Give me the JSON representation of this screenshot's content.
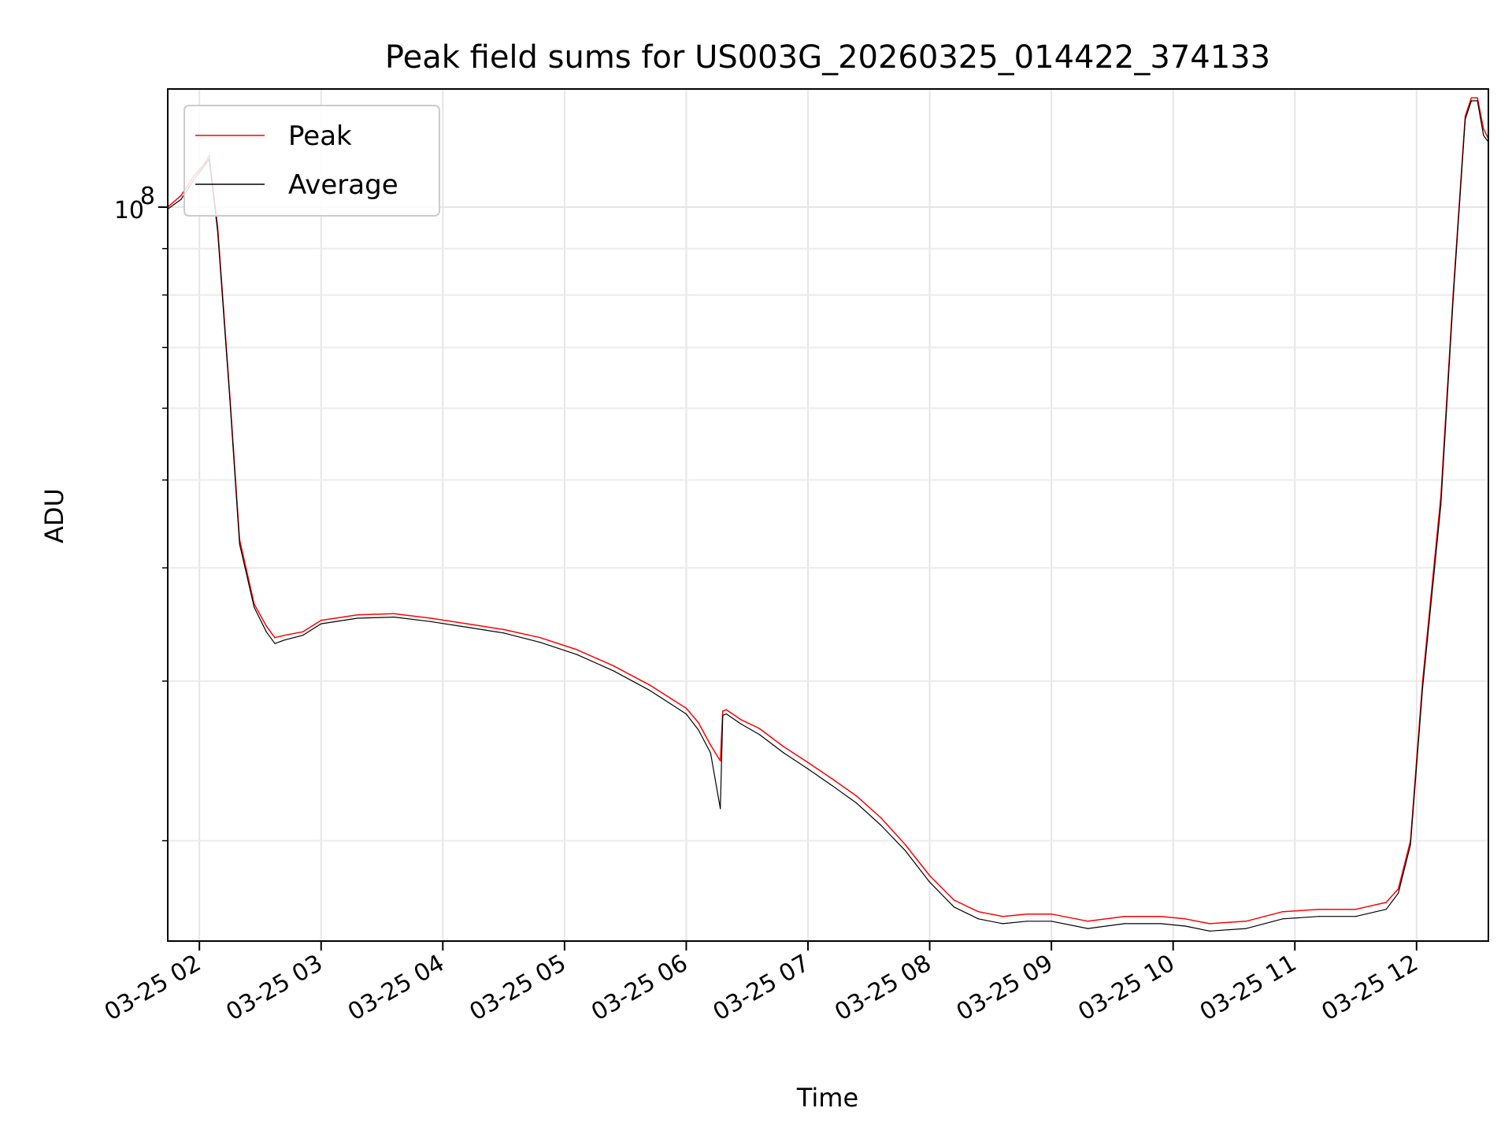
{
  "chart_data": {
    "type": "line",
    "title": "Peak field sums for US003G_20260325_014422_374133",
    "xlabel": "Time",
    "ylabel": "ADU",
    "yscale": "log",
    "ylim": [
      15500000,
      135000000
    ],
    "xlim": [
      1.74,
      12.59
    ],
    "grid": true,
    "legend_position": "top-left",
    "x_unit": "hours since 2026-03-25 00:00",
    "xticks": [
      {
        "value": 2,
        "label": "03-25 02"
      },
      {
        "value": 3,
        "label": "03-25 03"
      },
      {
        "value": 4,
        "label": "03-25 04"
      },
      {
        "value": 5,
        "label": "03-25 05"
      },
      {
        "value": 6,
        "label": "03-25 06"
      },
      {
        "value": 7,
        "label": "03-25 07"
      },
      {
        "value": 8,
        "label": "03-25 08"
      },
      {
        "value": 9,
        "label": "03-25 09"
      },
      {
        "value": 10,
        "label": "03-25 10"
      },
      {
        "value": 11,
        "label": "03-25 11"
      },
      {
        "value": 12,
        "label": "03-25 12"
      }
    ],
    "ytick_major": {
      "value": 100000000,
      "base": "10",
      "exponent": "8"
    },
    "ytick_minor": [
      20000000,
      30000000,
      40000000,
      50000000,
      60000000,
      70000000,
      80000000,
      90000000
    ],
    "series": [
      {
        "name": "Peak",
        "color": "#ff0000",
        "x": [
          1.74,
          1.85,
          1.95,
          2.05,
          2.08,
          2.15,
          2.25,
          2.33,
          2.45,
          2.55,
          2.62,
          2.7,
          2.85,
          3.0,
          3.3,
          3.6,
          3.9,
          4.2,
          4.5,
          4.8,
          5.1,
          5.4,
          5.7,
          6.0,
          6.1,
          6.2,
          6.28,
          6.3,
          6.33,
          6.45,
          6.6,
          6.8,
          7.0,
          7.2,
          7.4,
          7.6,
          7.8,
          8.0,
          8.2,
          8.4,
          8.6,
          8.8,
          9.0,
          9.3,
          9.6,
          9.9,
          10.1,
          10.3,
          10.6,
          10.9,
          11.2,
          11.5,
          11.75,
          11.85,
          11.95,
          12.05,
          12.2,
          12.3,
          12.38,
          12.4,
          12.45,
          12.5,
          12.55,
          12.59
        ],
        "values": [
          100000000,
          103000000,
          108000000,
          112000000,
          114000000,
          95000000,
          62000000,
          43000000,
          36500000,
          34500000,
          33500000,
          33700000,
          34000000,
          35000000,
          35500000,
          35600000,
          35200000,
          34700000,
          34200000,
          33500000,
          32500000,
          31200000,
          29700000,
          28000000,
          27000000,
          25500000,
          24500000,
          27800000,
          27900000,
          27200000,
          26600000,
          25400000,
          24400000,
          23400000,
          22400000,
          21200000,
          19800000,
          18300000,
          17200000,
          16700000,
          16500000,
          16600000,
          16600000,
          16300000,
          16500000,
          16500000,
          16400000,
          16200000,
          16300000,
          16700000,
          16800000,
          16800000,
          17100000,
          17700000,
          20000000,
          30000000,
          48000000,
          80000000,
          115000000,
          126000000,
          132000000,
          132000000,
          122000000,
          119000000
        ]
      },
      {
        "name": "Average",
        "color": "#000000",
        "x": [
          1.74,
          1.85,
          1.95,
          2.05,
          2.08,
          2.15,
          2.25,
          2.33,
          2.45,
          2.55,
          2.62,
          2.7,
          2.85,
          3.0,
          3.3,
          3.6,
          3.9,
          4.2,
          4.5,
          4.8,
          5.1,
          5.4,
          5.7,
          6.0,
          6.1,
          6.2,
          6.28,
          6.3,
          6.33,
          6.45,
          6.6,
          6.8,
          7.0,
          7.2,
          7.4,
          7.6,
          7.8,
          8.0,
          8.2,
          8.4,
          8.6,
          8.8,
          9.0,
          9.3,
          9.6,
          9.9,
          10.1,
          10.3,
          10.6,
          10.9,
          11.2,
          11.5,
          11.75,
          11.85,
          11.95,
          12.05,
          12.2,
          12.3,
          12.38,
          12.4,
          12.45,
          12.5,
          12.55,
          12.59
        ],
        "values": [
          99500000,
          102000000,
          107000000,
          111500000,
          113000000,
          94000000,
          61500000,
          42500000,
          36200000,
          34000000,
          33000000,
          33300000,
          33700000,
          34700000,
          35200000,
          35300000,
          34900000,
          34400000,
          33900000,
          33100000,
          32100000,
          30800000,
          29300000,
          27600000,
          26500000,
          25000000,
          21700000,
          27500000,
          27600000,
          26900000,
          26200000,
          25000000,
          24000000,
          23000000,
          22000000,
          20800000,
          19500000,
          18000000,
          16900000,
          16400000,
          16200000,
          16300000,
          16300000,
          16000000,
          16200000,
          16200000,
          16100000,
          15900000,
          16000000,
          16400000,
          16500000,
          16500000,
          16800000,
          17500000,
          19800000,
          29500000,
          47000000,
          79000000,
          114000000,
          125000000,
          131000000,
          131000000,
          120000000,
          118000000
        ]
      }
    ]
  }
}
